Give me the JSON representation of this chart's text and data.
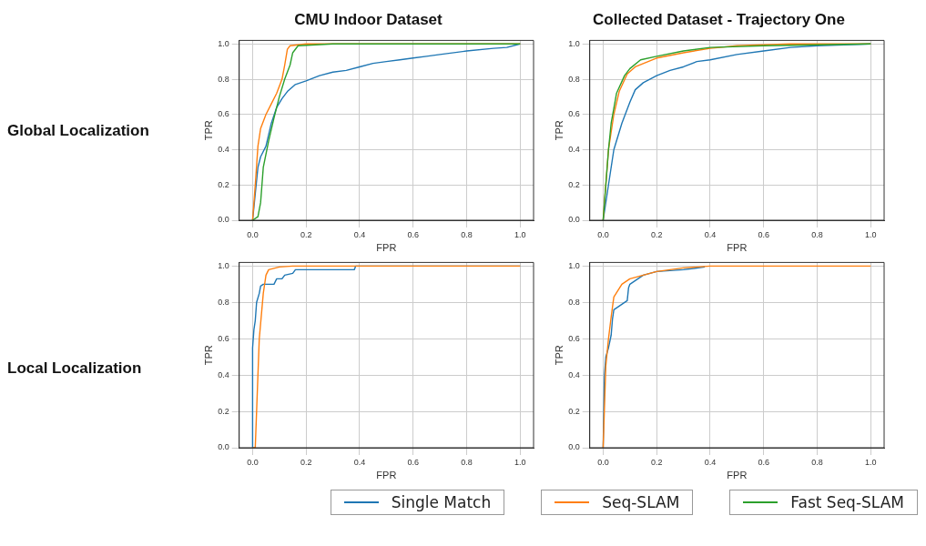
{
  "chart_data": [
    {
      "type": "line",
      "title": "CMU Indoor Dataset",
      "xlabel": "FPR",
      "ylabel": "TPR",
      "annotations": [
        "Global Localization"
      ],
      "xlim": [
        -0.05,
        1.05
      ],
      "ylim": [
        0,
        1.02
      ],
      "xticks": [
        {
          "value": 0,
          "label": "0.0"
        },
        {
          "value": 0.2,
          "label": "0.2"
        },
        {
          "value": 0.4,
          "label": "0.4"
        },
        {
          "value": 0.6,
          "label": "0.6"
        },
        {
          "value": 0.8,
          "label": "0.8"
        },
        {
          "value": 1,
          "label": "1.0"
        }
      ],
      "yticks": [
        {
          "value": 0,
          "label": "0.0"
        },
        {
          "value": 0.2,
          "label": "0.2"
        },
        {
          "value": 0.4,
          "label": "0.4"
        },
        {
          "value": 0.6,
          "label": "0.6"
        },
        {
          "value": 0.8,
          "label": "0.8"
        },
        {
          "value": 1,
          "label": "1.0"
        }
      ],
      "grid": true,
      "legend": "bottom",
      "series": [
        {
          "name": "Single Match",
          "color": "#1f77b4",
          "x": [
            0,
            0.01,
            0.02,
            0.03,
            0.05,
            0.07,
            0.09,
            0.11,
            0.13,
            0.16,
            0.2,
            0.25,
            0.3,
            0.35,
            0.4,
            0.45,
            0.5,
            0.55,
            0.6,
            0.65,
            0.7,
            0.8,
            0.9,
            0.95,
            1
          ],
          "values": [
            0,
            0.15,
            0.3,
            0.36,
            0.42,
            0.55,
            0.64,
            0.69,
            0.73,
            0.77,
            0.79,
            0.82,
            0.84,
            0.85,
            0.87,
            0.89,
            0.9,
            0.91,
            0.92,
            0.93,
            0.94,
            0.96,
            0.975,
            0.98,
            1
          ]
        },
        {
          "name": "Seq-SLAM",
          "color": "#ff7f0e",
          "x": [
            0,
            0.01,
            0.02,
            0.03,
            0.05,
            0.07,
            0.09,
            0.11,
            0.12,
            0.13,
            0.14,
            0.2,
            1
          ],
          "values": [
            0,
            0.2,
            0.42,
            0.52,
            0.6,
            0.66,
            0.72,
            0.8,
            0.88,
            0.97,
            0.99,
            1,
            1
          ]
        },
        {
          "name": "Fast Seq-SLAM",
          "color": "#2ca02c",
          "x": [
            0,
            0.02,
            0.03,
            0.04,
            0.06,
            0.08,
            0.1,
            0.12,
            0.14,
            0.15,
            0.17,
            0.3,
            1
          ],
          "values": [
            0,
            0.02,
            0.1,
            0.3,
            0.45,
            0.58,
            0.7,
            0.8,
            0.88,
            0.95,
            0.99,
            1,
            1
          ]
        }
      ]
    },
    {
      "type": "line",
      "title": "Collected Dataset - Trajectory One",
      "xlabel": "FPR",
      "ylabel": "TPR",
      "xlim": [
        -0.05,
        1.05
      ],
      "ylim": [
        0,
        1.02
      ],
      "xticks": [
        {
          "value": 0,
          "label": "0.0"
        },
        {
          "value": 0.2,
          "label": "0.2"
        },
        {
          "value": 0.4,
          "label": "0.4"
        },
        {
          "value": 0.6,
          "label": "0.6"
        },
        {
          "value": 0.8,
          "label": "0.8"
        },
        {
          "value": 1,
          "label": "1.0"
        }
      ],
      "yticks": [
        {
          "value": 0,
          "label": "0.0"
        },
        {
          "value": 0.2,
          "label": "0.2"
        },
        {
          "value": 0.4,
          "label": "0.4"
        },
        {
          "value": 0.6,
          "label": "0.6"
        },
        {
          "value": 0.8,
          "label": "0.8"
        },
        {
          "value": 1,
          "label": "1.0"
        }
      ],
      "grid": true,
      "legend": "bottom",
      "series": [
        {
          "name": "Single Match",
          "color": "#1f77b4",
          "x": [
            0,
            0.02,
            0.04,
            0.07,
            0.1,
            0.12,
            0.15,
            0.2,
            0.25,
            0.3,
            0.35,
            0.4,
            0.5,
            0.6,
            0.7,
            0.8,
            1
          ],
          "values": [
            0,
            0.2,
            0.4,
            0.55,
            0.67,
            0.74,
            0.78,
            0.82,
            0.85,
            0.87,
            0.9,
            0.91,
            0.94,
            0.96,
            0.98,
            0.99,
            1
          ]
        },
        {
          "name": "Seq-SLAM",
          "color": "#ff7f0e",
          "x": [
            0,
            0.02,
            0.04,
            0.06,
            0.09,
            0.12,
            0.2,
            0.3,
            0.4,
            0.5,
            0.7,
            1
          ],
          "values": [
            0,
            0.4,
            0.6,
            0.73,
            0.83,
            0.87,
            0.92,
            0.95,
            0.975,
            0.99,
            1,
            1
          ]
        },
        {
          "name": "Fast Seq-SLAM",
          "color": "#2ca02c",
          "x": [
            0,
            0.02,
            0.03,
            0.05,
            0.08,
            0.1,
            0.14,
            0.2,
            0.3,
            0.4,
            0.6,
            1
          ],
          "values": [
            0,
            0.4,
            0.55,
            0.72,
            0.82,
            0.86,
            0.91,
            0.93,
            0.96,
            0.98,
            0.99,
            1
          ]
        }
      ]
    },
    {
      "type": "line",
      "xlabel": "FPR",
      "ylabel": "TPR",
      "annotations": [
        "Local Localization"
      ],
      "xlim": [
        -0.05,
        1.05
      ],
      "ylim": [
        0,
        1.02
      ],
      "xticks": [
        {
          "value": 0,
          "label": "0.0"
        },
        {
          "value": 0.2,
          "label": "0.2"
        },
        {
          "value": 0.4,
          "label": "0.4"
        },
        {
          "value": 0.6,
          "label": "0.6"
        },
        {
          "value": 0.8,
          "label": "0.8"
        },
        {
          "value": 1,
          "label": "1.0"
        }
      ],
      "yticks": [
        {
          "value": 0,
          "label": "0.0"
        },
        {
          "value": 0.2,
          "label": "0.2"
        },
        {
          "value": 0.4,
          "label": "0.4"
        },
        {
          "value": 0.6,
          "label": "0.6"
        },
        {
          "value": 0.8,
          "label": "0.8"
        },
        {
          "value": 1,
          "label": "1.0"
        }
      ],
      "grid": true,
      "legend": "bottom",
      "series": [
        {
          "name": "Single Match",
          "color": "#1f77b4",
          "x": [
            0,
            0,
            0.005,
            0.01,
            0.015,
            0.025,
            0.03,
            0.04,
            0.08,
            0.09,
            0.11,
            0.12,
            0.15,
            0.16,
            0.38,
            0.385,
            1
          ],
          "values": [
            0,
            0.55,
            0.65,
            0.7,
            0.8,
            0.85,
            0.89,
            0.9,
            0.9,
            0.93,
            0.93,
            0.95,
            0.96,
            0.98,
            0.98,
            1,
            1
          ]
        },
        {
          "name": "Seq-SLAM",
          "color": "#ff7f0e",
          "x": [
            0,
            0.01,
            0.015,
            0.025,
            0.04,
            0.05,
            0.06,
            0.1,
            0.15,
            1
          ],
          "values": [
            0,
            0,
            0.2,
            0.6,
            0.85,
            0.95,
            0.98,
            0.995,
            1,
            1
          ]
        }
      ]
    },
    {
      "type": "line",
      "xlabel": "FPR",
      "ylabel": "TPR",
      "xlim": [
        -0.05,
        1.05
      ],
      "ylim": [
        0,
        1.02
      ],
      "xticks": [
        {
          "value": 0,
          "label": "0.0"
        },
        {
          "value": 0.2,
          "label": "0.2"
        },
        {
          "value": 0.4,
          "label": "0.4"
        },
        {
          "value": 0.6,
          "label": "0.6"
        },
        {
          "value": 0.8,
          "label": "0.8"
        },
        {
          "value": 1,
          "label": "1.0"
        }
      ],
      "yticks": [
        {
          "value": 0,
          "label": "0.0"
        },
        {
          "value": 0.2,
          "label": "0.2"
        },
        {
          "value": 0.4,
          "label": "0.4"
        },
        {
          "value": 0.6,
          "label": "0.6"
        },
        {
          "value": 0.8,
          "label": "0.8"
        },
        {
          "value": 1,
          "label": "1.0"
        }
      ],
      "grid": true,
      "legend": "bottom",
      "series": [
        {
          "name": "Single Match",
          "color": "#1f77b4",
          "x": [
            0,
            0.005,
            0.01,
            0.02,
            0.03,
            0.035,
            0.04,
            0.05,
            0.06,
            0.08,
            0.09,
            0.095,
            0.1,
            0.12,
            0.15,
            0.2,
            0.3,
            0.38
          ],
          "values": [
            0,
            0.4,
            0.5,
            0.55,
            0.62,
            0.71,
            0.76,
            0.77,
            0.78,
            0.8,
            0.81,
            0.88,
            0.9,
            0.92,
            0.95,
            0.97,
            0.98,
            0.995
          ]
        },
        {
          "name": "Seq-SLAM",
          "color": "#ff7f0e",
          "x": [
            0,
            0.01,
            0.02,
            0.03,
            0.04,
            0.07,
            0.1,
            0.15,
            0.2,
            0.3,
            0.4,
            1
          ],
          "values": [
            0,
            0.45,
            0.6,
            0.72,
            0.83,
            0.9,
            0.93,
            0.95,
            0.97,
            0.99,
            1,
            1
          ]
        }
      ]
    }
  ]
}
